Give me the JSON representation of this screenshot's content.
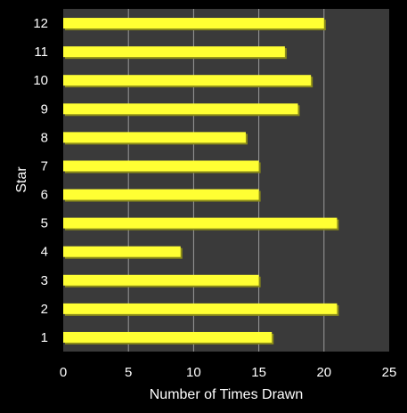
{
  "chart_data": {
    "type": "bar",
    "orientation": "horizontal",
    "title": "",
    "xlabel": "Number of Times Drawn",
    "ylabel": "Star",
    "categories": [
      "1",
      "2",
      "3",
      "4",
      "5",
      "6",
      "7",
      "8",
      "9",
      "10",
      "11",
      "12"
    ],
    "values": [
      16,
      21,
      15,
      9,
      21,
      15,
      15,
      14,
      18,
      19,
      17,
      20
    ],
    "xlim": [
      0,
      25
    ],
    "xticks": [
      "0",
      "5",
      "10",
      "15",
      "20",
      "25"
    ],
    "grid": "vertical",
    "legend": "none",
    "colors": {
      "background": "#000000",
      "plot_area": "#3a3a3a",
      "bar_fill": "#ffff33",
      "bar_shadow": "#8a8a1a",
      "grid": "#9a9a9a",
      "text": "#ffffff"
    }
  }
}
